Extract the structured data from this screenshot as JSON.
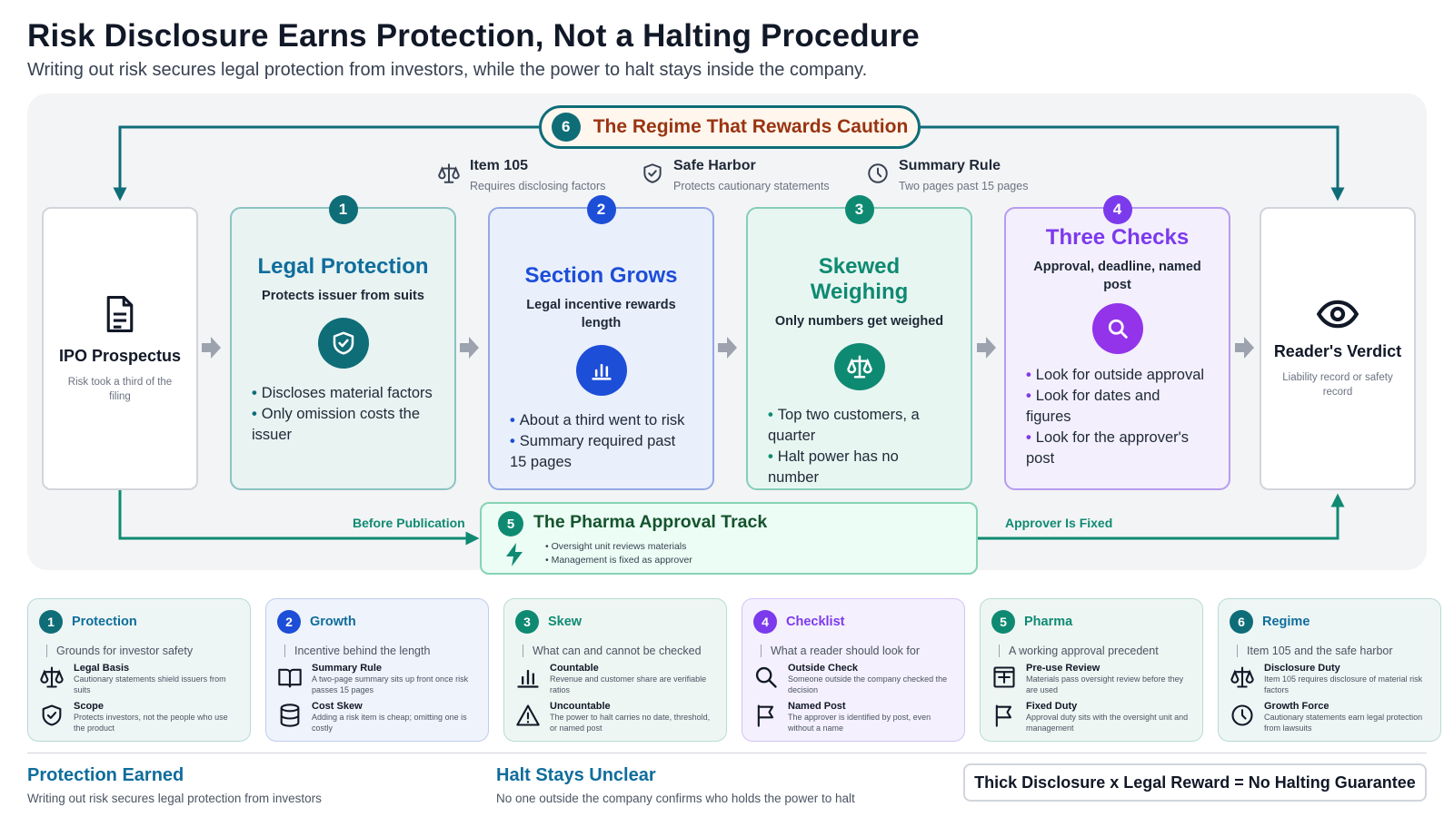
{
  "title": "Risk Disclosure Earns Protection, Not a Halting Procedure",
  "subtitle": "Writing out risk secures legal protection from investors, while the power to halt stays inside the company.",
  "regime": {
    "num": "6",
    "label": "The Regime That Rewards Caution"
  },
  "laws": [
    {
      "title": "Item 105",
      "desc": "Requires disclosing factors",
      "icon": "scale-icon"
    },
    {
      "title": "Safe Harbor",
      "desc": "Protects cautionary statements",
      "icon": "shield-icon"
    },
    {
      "title": "Summary Rule",
      "desc": "Two pages past 15 pages",
      "icon": "clock-icon"
    }
  ],
  "start": {
    "title": "IPO Prospectus",
    "desc": "Risk took a third of the filing",
    "icon": "document-icon"
  },
  "end": {
    "title": "Reader's Verdict",
    "desc": "Liability record or safety record",
    "icon": "eye-icon"
  },
  "stages": [
    {
      "num": "1",
      "title": "Legal Protection",
      "subtitle": "Protects issuer from suits",
      "bullets": [
        "Discloses material factors",
        "Only omission costs the issuer"
      ],
      "color": "#0f6d78",
      "icon": "shield-icon"
    },
    {
      "num": "2",
      "title": "Section Grows",
      "subtitle": "Legal incentive rewards length",
      "bullets": [
        "About a third went to risk",
        "Summary required past 15 pages"
      ],
      "color": "#1d4ed8",
      "icon": "bar-chart-icon"
    },
    {
      "num": "3",
      "title": "Skewed Weighing",
      "subtitle": "Only numbers get weighed",
      "bullets": [
        "Top two customers, a quarter",
        "Halt power has no number"
      ],
      "color": "#0f8a72",
      "icon": "scale-icon"
    },
    {
      "num": "4",
      "title": "Three Checks",
      "subtitle": "Approval, deadline, named post",
      "bullets": [
        "Look for outside approval",
        "Look for dates and figures",
        "Look for the approver's post"
      ],
      "color": "#7c3aed",
      "icon": "search-icon"
    }
  ],
  "pharma": {
    "num": "5",
    "title": "The Pharma Approval Track",
    "bullets": [
      "Oversight unit reviews materials",
      "Management is fixed as approver"
    ],
    "icon": "lightning-icon"
  },
  "flow_labels": {
    "left": "Before Publication",
    "right": "Approver Is Fixed"
  },
  "cards": [
    {
      "num": "1",
      "title": "Protection",
      "sub": "Grounds for investor safety",
      "color": "#0f6d78",
      "items": [
        {
          "a": "Legal Basis",
          "b": "Cautionary statements shield issuers from suits",
          "icon": "scale-icon"
        },
        {
          "a": "Scope",
          "b": "Protects investors, not the people who use the product",
          "icon": "shield-icon"
        }
      ]
    },
    {
      "num": "2",
      "title": "Growth",
      "sub": "Incentive behind the length",
      "color": "#1d4ed8",
      "items": [
        {
          "a": "Summary Rule",
          "b": "A two-page summary sits up front once risk passes 15 pages",
          "icon": "book-icon"
        },
        {
          "a": "Cost Skew",
          "b": "Adding a risk item is cheap; omitting one is costly",
          "icon": "database-icon"
        }
      ]
    },
    {
      "num": "3",
      "title": "Skew",
      "sub": "What can and cannot be checked",
      "color": "#0f8a72",
      "items": [
        {
          "a": "Countable",
          "b": "Revenue and customer share are verifiable ratios",
          "icon": "bar-chart-icon"
        },
        {
          "a": "Uncountable",
          "b": "The power to halt carries no date, threshold, or named post",
          "icon": "warning-icon"
        }
      ]
    },
    {
      "num": "4",
      "title": "Checklist",
      "sub": "What a reader should look for",
      "color": "#7c3aed",
      "items": [
        {
          "a": "Outside Check",
          "b": "Someone outside the company checked the decision",
          "icon": "search-icon"
        },
        {
          "a": "Named Post",
          "b": "The approver is identified by post, even without a name",
          "icon": "flag-icon"
        }
      ]
    },
    {
      "num": "5",
      "title": "Pharma",
      "sub": "A working approval precedent",
      "color": "#0f8a72",
      "items": [
        {
          "a": "Pre-use Review",
          "b": "Materials pass oversight review before they are used",
          "icon": "plus-box-icon"
        },
        {
          "a": "Fixed Duty",
          "b": "Approval duty sits with the oversight unit and management",
          "icon": "flag-icon"
        }
      ]
    },
    {
      "num": "6",
      "title": "Regime",
      "sub": "Item 105 and the safe harbor",
      "color": "#0f6d78",
      "items": [
        {
          "a": "Disclosure Duty",
          "b": "Item 105 requires disclosure of material risk factors",
          "icon": "scale-icon"
        },
        {
          "a": "Growth Force",
          "b": "Cautionary statements earn legal protection from lawsuits",
          "icon": "clock-icon"
        }
      ]
    }
  ],
  "footer": [
    {
      "title": "Protection Earned",
      "desc": "Writing out risk secures legal protection from investors"
    },
    {
      "title": "Halt Stays Unclear",
      "desc": "No one outside the company confirms who holds the power to halt"
    }
  ],
  "formula": "Thick Disclosure x Legal Reward = No Halting Guarantee"
}
